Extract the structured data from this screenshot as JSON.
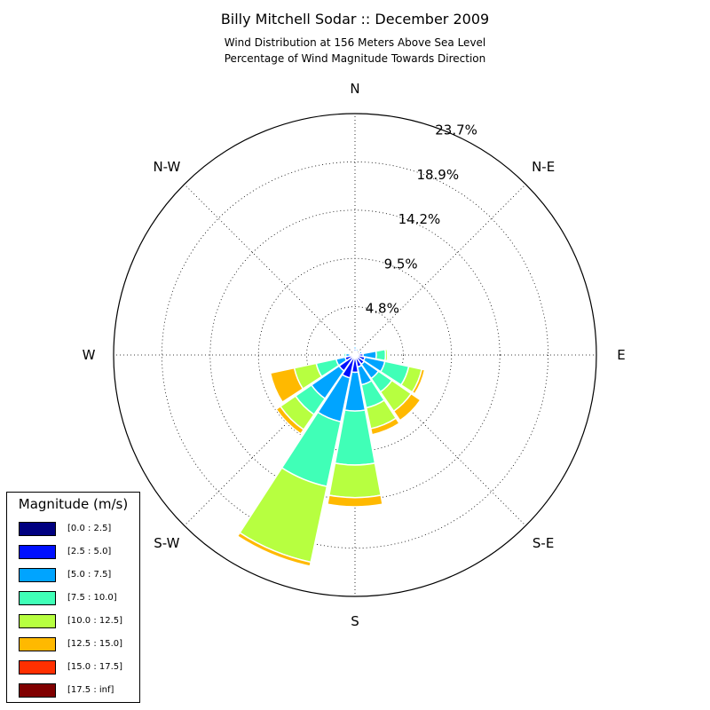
{
  "title": "Billy Mitchell Sodar :: December 2009",
  "subtitle_line1": "Wind Distribution at 156 Meters Above Sea Level",
  "subtitle_line2": "Percentage of Wind Magnitude Towards Direction",
  "legend": {
    "title": "Magnitude (m/s)",
    "items": [
      {
        "label": "[0.0 : 2.5]",
        "color": "#000080"
      },
      {
        "label": "[2.5 : 5.0]",
        "color": "#0010ff"
      },
      {
        "label": "[5.0 : 7.5]",
        "color": "#00a4ff"
      },
      {
        "label": "[7.5 : 10.0]",
        "color": "#40ffb7"
      },
      {
        "label": "[10.0 : 12.5]",
        "color": "#b7ff40"
      },
      {
        "label": "[12.5 : 15.0]",
        "color": "#ffb900"
      },
      {
        "label": "[15.0 : 17.5]",
        "color": "#ff3000"
      },
      {
        "label": "[17.5 : inf]",
        "color": "#800000"
      }
    ]
  },
  "chart_data": {
    "type": "windrose",
    "radial_ticks": [
      "4.8%",
      "9.5%",
      "14.2%",
      "18.9%",
      "23.7%"
    ],
    "radial_tick_values": [
      4.74,
      9.48,
      14.22,
      18.96,
      23.7
    ],
    "r_max": 23.7,
    "direction_labels": [
      {
        "label": "N",
        "angle": 0
      },
      {
        "label": "N-E",
        "angle": 45
      },
      {
        "label": "E",
        "angle": 90
      },
      {
        "label": "S-E",
        "angle": 135
      },
      {
        "label": "S",
        "angle": 180
      },
      {
        "label": "S-W",
        "angle": 225
      },
      {
        "label": "W",
        "angle": 270
      },
      {
        "label": "N-W",
        "angle": 315
      }
    ],
    "sector_width_deg": 22.5,
    "sectors": [
      {
        "direction": 0,
        "values": [
          0.2,
          0.4,
          0.2,
          0,
          0,
          0,
          0,
          0
        ]
      },
      {
        "direction": 22.5,
        "values": [
          0.2,
          0.2,
          0.2,
          0,
          0,
          0,
          0,
          0
        ]
      },
      {
        "direction": 45,
        "values": [
          0.1,
          0,
          0,
          0,
          0,
          0,
          0,
          0
        ]
      },
      {
        "direction": 67.5,
        "values": [
          0.2,
          0.3,
          0.2,
          0,
          0,
          0,
          0,
          0
        ]
      },
      {
        "direction": 90,
        "values": [
          0.2,
          0.6,
          1.3,
          0.9,
          0.2,
          0,
          0,
          0
        ]
      },
      {
        "direction": 112.5,
        "values": [
          0.2,
          0.8,
          2.0,
          2.4,
          1.3,
          0.3,
          0,
          0
        ]
      },
      {
        "direction": 135,
        "values": [
          0.2,
          0.9,
          1.7,
          1.6,
          2.3,
          1.1,
          0,
          0
        ]
      },
      {
        "direction": 157.5,
        "values": [
          0.3,
          0.9,
          1.8,
          2.3,
          2.1,
          0.6,
          0,
          0
        ]
      },
      {
        "direction": 180,
        "values": [
          0.2,
          1.5,
          3.8,
          5.3,
          3.2,
          0.9,
          0,
          0
        ]
      },
      {
        "direction": 202.5,
        "values": [
          0.2,
          2.1,
          4.4,
          6.5,
          7.6,
          0.4,
          0,
          0
        ]
      },
      {
        "direction": 225,
        "values": [
          0.2,
          1.7,
          3.3,
          1.9,
          1.8,
          0.5,
          0,
          0
        ]
      },
      {
        "direction": 247.5,
        "values": [
          0.2,
          0.8,
          0.9,
          2.0,
          2.2,
          2.4,
          0,
          0
        ]
      },
      {
        "direction": 270,
        "values": [
          0.2,
          0.3,
          0.4,
          0.2,
          0.1,
          0,
          0,
          0
        ]
      },
      {
        "direction": 292.5,
        "values": [
          0.1,
          0.1,
          0,
          0,
          0,
          0,
          0,
          0
        ]
      },
      {
        "direction": 315,
        "values": [
          0.1,
          0.1,
          0,
          0,
          0,
          0,
          0,
          0
        ]
      },
      {
        "direction": 337.5,
        "values": [
          0.2,
          0.2,
          0,
          0,
          0,
          0,
          0,
          0
        ]
      }
    ],
    "grid": true,
    "legend_position": "lower-left"
  }
}
